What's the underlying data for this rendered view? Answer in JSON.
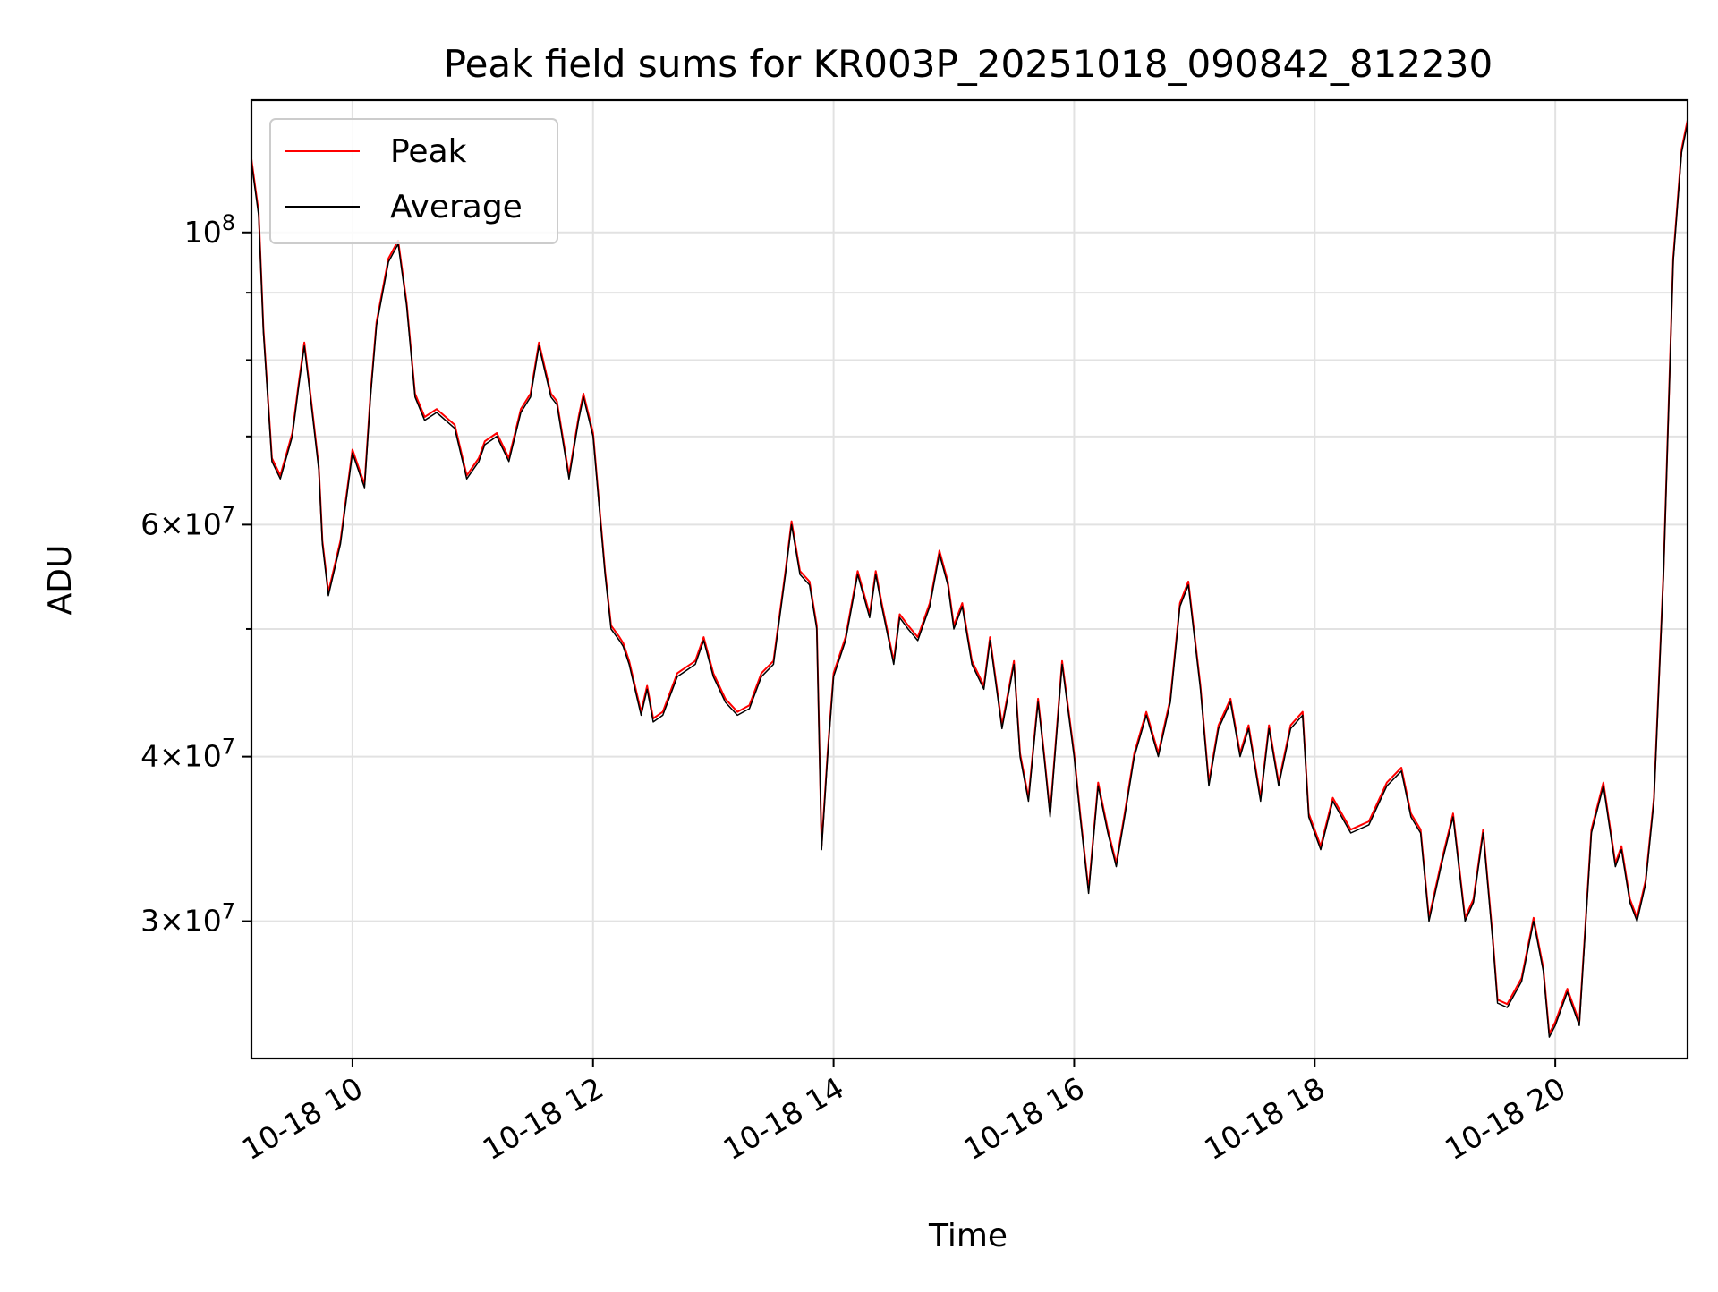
{
  "chart_data": {
    "type": "line",
    "title": "Peak field sums for KR003P_20251018_090842_812230",
    "xlabel": "Time",
    "ylabel": "ADU",
    "yscale": "log",
    "grid": true,
    "legend_position": "upper-left",
    "x_unit": "hours (2025-10-18)",
    "xlim": [
      9.16,
      21.1
    ],
    "ylim": [
      23600000,
      126000000
    ],
    "x_ticks": [
      {
        "value": 10,
        "label": "10-18 10"
      },
      {
        "value": 12,
        "label": "10-18 12"
      },
      {
        "value": 14,
        "label": "10-18 14"
      },
      {
        "value": 16,
        "label": "10-18 16"
      },
      {
        "value": 18,
        "label": "10-18 18"
      },
      {
        "value": 20,
        "label": "10-18 20"
      }
    ],
    "y_major_ticks": [
      {
        "value": 100000000,
        "base": "10",
        "exp": "8",
        "mant": ""
      },
      {
        "value": 60000000,
        "mant": "6×",
        "base": "10",
        "exp": "7"
      },
      {
        "value": 40000000,
        "mant": "4×",
        "base": "10",
        "exp": "7"
      },
      {
        "value": 30000000,
        "mant": "3×",
        "base": "10",
        "exp": "7"
      }
    ],
    "y_minor_ticks": [
      90000000,
      80000000,
      70000000,
      50000000
    ],
    "series": [
      {
        "name": "Average",
        "color": "#000000"
      },
      {
        "name": "Peak",
        "color": "#ff0000"
      }
    ],
    "peak_offset_factor": 1.006,
    "x": [
      9.16,
      9.22,
      9.26,
      9.33,
      9.4,
      9.5,
      9.55,
      9.6,
      9.65,
      9.72,
      9.75,
      9.8,
      9.9,
      10.0,
      10.1,
      10.15,
      10.2,
      10.3,
      10.38,
      10.45,
      10.52,
      10.6,
      10.7,
      10.85,
      10.95,
      11.05,
      11.1,
      11.2,
      11.3,
      11.4,
      11.48,
      11.55,
      11.65,
      11.7,
      11.8,
      11.88,
      11.92,
      12.0,
      12.05,
      12.1,
      12.15,
      12.22,
      12.25,
      12.3,
      12.4,
      12.45,
      12.5,
      12.58,
      12.7,
      12.85,
      12.92,
      13.0,
      13.1,
      13.2,
      13.3,
      13.4,
      13.5,
      13.6,
      13.65,
      13.72,
      13.8,
      13.86,
      13.9,
      13.95,
      14.0,
      14.1,
      14.2,
      14.3,
      14.35,
      14.4,
      14.5,
      14.55,
      14.62,
      14.7,
      14.8,
      14.88,
      14.95,
      15.0,
      15.07,
      15.15,
      15.25,
      15.3,
      15.4,
      15.5,
      15.55,
      15.62,
      15.7,
      15.75,
      15.8,
      15.9,
      16.0,
      16.05,
      16.12,
      16.2,
      16.28,
      16.35,
      16.42,
      16.5,
      16.6,
      16.7,
      16.8,
      16.88,
      16.95,
      17.05,
      17.12,
      17.2,
      17.3,
      17.38,
      17.45,
      17.55,
      17.62,
      17.7,
      17.8,
      17.9,
      17.95,
      18.05,
      18.15,
      18.3,
      18.45,
      18.6,
      18.72,
      18.8,
      18.88,
      18.95,
      19.05,
      19.15,
      19.25,
      19.32,
      19.4,
      19.48,
      19.52,
      19.6,
      19.72,
      19.82,
      19.9,
      19.95,
      20.0,
      20.1,
      20.2,
      20.3,
      20.4,
      20.5,
      20.55,
      20.62,
      20.68,
      20.75,
      20.82,
      20.9,
      20.98,
      21.05,
      21.1
    ],
    "values": [
      113000000,
      103000000,
      84000000,
      67000000,
      65000000,
      70000000,
      76000000,
      82000000,
      75000000,
      66000000,
      58000000,
      53000000,
      58000000,
      68000000,
      64000000,
      75000000,
      85000000,
      95000000,
      98000000,
      88000000,
      75000000,
      72000000,
      73000000,
      71000000,
      65000000,
      67000000,
      69000000,
      70000000,
      67000000,
      73000000,
      75000000,
      82000000,
      75000000,
      74000000,
      65000000,
      72000000,
      75000000,
      70000000,
      62000000,
      55000000,
      50000000,
      49000000,
      48500000,
      47000000,
      43000000,
      45000000,
      42500000,
      43000000,
      46000000,
      47000000,
      49000000,
      46000000,
      44000000,
      43000000,
      43500000,
      46000000,
      47000000,
      55000000,
      60000000,
      55000000,
      54000000,
      50000000,
      34000000,
      40000000,
      46000000,
      49000000,
      55000000,
      51000000,
      55000000,
      52000000,
      47000000,
      51000000,
      50000000,
      49000000,
      52000000,
      57000000,
      54000000,
      50000000,
      52000000,
      47000000,
      45000000,
      49000000,
      42000000,
      47000000,
      40000000,
      37000000,
      44000000,
      40000000,
      36000000,
      47000000,
      40000000,
      36000000,
      31500000,
      38000000,
      35000000,
      33000000,
      36000000,
      40000000,
      43000000,
      40000000,
      44000000,
      52000000,
      54000000,
      45000000,
      38000000,
      42000000,
      44000000,
      40000000,
      42000000,
      37000000,
      42000000,
      38000000,
      42000000,
      43000000,
      36000000,
      34000000,
      37000000,
      35000000,
      35500000,
      38000000,
      39000000,
      36000000,
      35000000,
      30000000,
      33000000,
      36000000,
      30000000,
      31000000,
      35000000,
      29000000,
      26000000,
      25800000,
      27000000,
      30000000,
      27500000,
      24500000,
      25000000,
      26500000,
      25000000,
      35000000,
      38000000,
      33000000,
      34000000,
      31000000,
      30000000,
      32000000,
      37000000,
      55000000,
      95000000,
      115000000,
      121000000
    ]
  },
  "legend": {
    "peak_label": "Peak",
    "average_label": "Average"
  }
}
